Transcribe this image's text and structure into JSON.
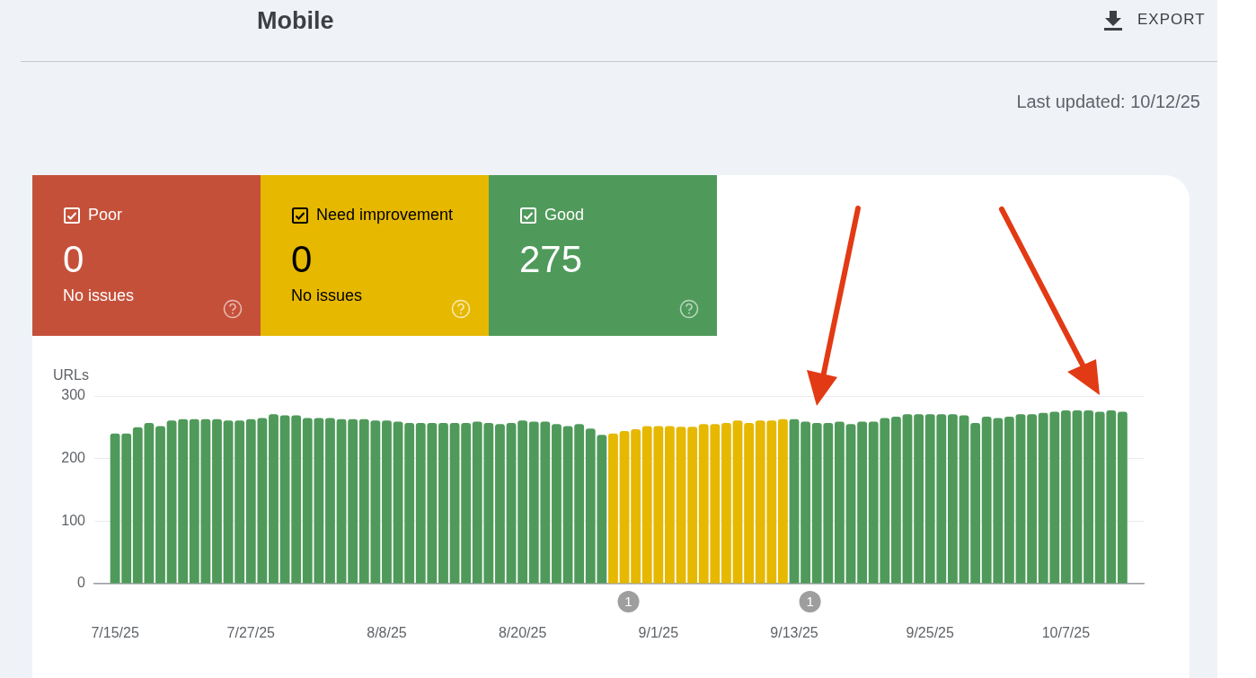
{
  "chart_data": [
    {
      "type": "other",
      "title": "Mobile",
      "data_labels": true,
      "categories": [
        "Poor",
        "Need improvement",
        "Good"
      ],
      "values": [
        0,
        0,
        275
      ],
      "colors": [
        "#c5503a",
        "#e6b800",
        "#4f9a5a"
      ],
      "annotations": [
        "EXPORT",
        "Last updated: 10/12/25",
        {
          "text": "No issues",
          "x": "Poor"
        },
        {
          "text": "No issues",
          "x": "Need improvement"
        }
      ]
    },
    {
      "type": "bar",
      "ylabel": "URLs",
      "grid": "y",
      "legend": false,
      "x": [
        "--07-15",
        "--07-16",
        "--07-17",
        "--07-18",
        "--07-19",
        "--07-20",
        "--07-21",
        "--07-22",
        "--07-23",
        "--07-24",
        "--07-25",
        "--07-26",
        "--07-27",
        "--07-28",
        "--07-29",
        "--07-30",
        "--07-31",
        "--08-01",
        "--08-02",
        "--08-03",
        "--08-04",
        "--08-05",
        "--08-06",
        "--08-07",
        "--08-08",
        "--08-09",
        "--08-10",
        "--08-11",
        "--08-12",
        "--08-13",
        "--08-14",
        "--08-15",
        "--08-16",
        "--08-17",
        "--08-18",
        "--08-19",
        "--08-20",
        "--08-21",
        "--08-22",
        "--08-23",
        "--08-24",
        "--08-25",
        "--08-26",
        "--08-27",
        "--08-28",
        "--08-29",
        "--08-30",
        "--08-31",
        "--09-01",
        "--09-02",
        "--09-03",
        "--09-04",
        "--09-05",
        "--09-06",
        "--09-07",
        "--09-08",
        "--09-09",
        "--09-10",
        "--09-11",
        "--09-12",
        "--09-13",
        "--09-14",
        "--09-15",
        "--09-16",
        "--09-17",
        "--09-18",
        "--09-19",
        "--09-20",
        "--09-21",
        "--09-22",
        "--09-23",
        "--09-24",
        "--09-25",
        "--09-26",
        "--09-27",
        "--09-28",
        "--09-29",
        "--09-30",
        "--10-01",
        "--10-02",
        "--10-03",
        "--10-04",
        "--10-05",
        "--10-06",
        "--10-07",
        "--10-08",
        "--10-09",
        "--10-10",
        "--10-11",
        "--10-12"
      ],
      "values": [
        240,
        240,
        250,
        257,
        252,
        261,
        263,
        263,
        263,
        263,
        261,
        261,
        263,
        265,
        271,
        269,
        269,
        265,
        265,
        265,
        263,
        263,
        263,
        261,
        261,
        259,
        257,
        257,
        257,
        257,
        257,
        257,
        259,
        257,
        255,
        257,
        261,
        259,
        259,
        255,
        252,
        255,
        248,
        238,
        240,
        244,
        247,
        252,
        252,
        252,
        251,
        251,
        255,
        255,
        257,
        261,
        257,
        261,
        261,
        263,
        263,
        259,
        257,
        257,
        259,
        255,
        259,
        259,
        265,
        267,
        271,
        271,
        271,
        271,
        271,
        269,
        257,
        267,
        265,
        267,
        271,
        271,
        273,
        275,
        277,
        277,
        277,
        275,
        277,
        275
      ],
      "colors": [
        "#4f9a5a",
        "#4f9a5a",
        "#4f9a5a",
        "#4f9a5a",
        "#4f9a5a",
        "#4f9a5a",
        "#4f9a5a",
        "#4f9a5a",
        "#4f9a5a",
        "#4f9a5a",
        "#4f9a5a",
        "#4f9a5a",
        "#4f9a5a",
        "#4f9a5a",
        "#4f9a5a",
        "#4f9a5a",
        "#4f9a5a",
        "#4f9a5a",
        "#4f9a5a",
        "#4f9a5a",
        "#4f9a5a",
        "#4f9a5a",
        "#4f9a5a",
        "#4f9a5a",
        "#4f9a5a",
        "#4f9a5a",
        "#4f9a5a",
        "#4f9a5a",
        "#4f9a5a",
        "#4f9a5a",
        "#4f9a5a",
        "#4f9a5a",
        "#4f9a5a",
        "#4f9a5a",
        "#4f9a5a",
        "#4f9a5a",
        "#4f9a5a",
        "#4f9a5a",
        "#4f9a5a",
        "#4f9a5a",
        "#4f9a5a",
        "#4f9a5a",
        "#4f9a5a",
        "#4f9a5a",
        "#e6b800",
        "#e6b800",
        "#e6b800",
        "#e6b800",
        "#e6b800",
        "#e6b800",
        "#e6b800",
        "#e6b800",
        "#e6b800",
        "#e6b800",
        "#e6b800",
        "#e6b800",
        "#e6b800",
        "#e6b800",
        "#e6b800",
        "#e6b800",
        "#4f9a5a",
        "#4f9a5a",
        "#4f9a5a",
        "#4f9a5a",
        "#4f9a5a",
        "#4f9a5a",
        "#4f9a5a",
        "#4f9a5a",
        "#4f9a5a",
        "#4f9a5a",
        "#4f9a5a",
        "#4f9a5a",
        "#4f9a5a",
        "#4f9a5a",
        "#4f9a5a",
        "#4f9a5a",
        "#4f9a5a",
        "#4f9a5a",
        "#4f9a5a",
        "#4f9a5a",
        "#4f9a5a",
        "#4f9a5a",
        "#4f9a5a",
        "#4f9a5a",
        "#4f9a5a",
        "#4f9a5a",
        "#4f9a5a",
        "#4f9a5a",
        "#4f9a5a",
        "#4f9a5a"
      ],
      "xlim": [
        "--07-13T04:00",
        "--10-13T21:00"
      ],
      "xticks": [
        {
          "value": "--07-15",
          "label": "7/15/25"
        },
        {
          "value": "--07-27",
          "label": "7/27/25"
        },
        {
          "value": "--08-08",
          "label": "8/8/25"
        },
        {
          "value": "--08-20",
          "label": "8/20/25"
        },
        {
          "value": "--09-01",
          "label": "9/1/25"
        },
        {
          "value": "--09-13",
          "label": "9/13/25"
        },
        {
          "value": "--09-25",
          "label": "9/25/25"
        },
        {
          "value": "--10-07",
          "label": "10/7/25"
        }
      ],
      "ylim": [
        0,
        300
      ],
      "yticks": [
        0,
        100,
        200,
        300
      ],
      "annotations": [
        "1",
        "1"
      ]
    }
  ]
}
